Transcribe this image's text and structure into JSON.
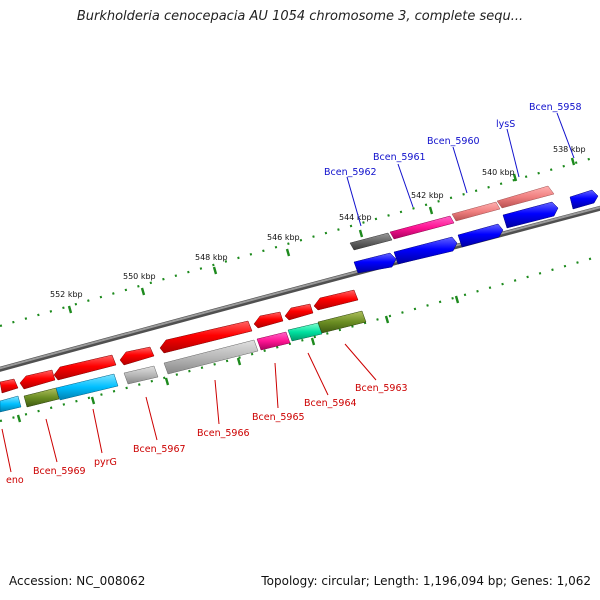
{
  "title": "Burkholderia cenocepacia AU 1054 chromosome 3, complete sequ...",
  "footer": {
    "accession": "Accession: NC_008062",
    "summary": "Topology: circular; Length: 1,196,094 bp; Genes: 1,062"
  },
  "colors": {
    "backbone": "#808080",
    "tick": "#1d8a1d",
    "upper_label": "#1010cc",
    "lower_label": "#cc0000"
  },
  "ticks": [
    "538 kbp",
    "540 kbp",
    "542 kbp",
    "544 kbp",
    "546 kbp",
    "548 kbp",
    "550 kbp",
    "552 kbp"
  ],
  "upper_labels": [
    "Bcen_5958",
    "lysS",
    "Bcen_5960",
    "Bcen_5961",
    "Bcen_5962"
  ],
  "lower_labels": [
    "eno",
    "Bcen_5969",
    "pyrG",
    "Bcen_5967",
    "Bcen_5966",
    "Bcen_5965",
    "Bcen_5964",
    "Bcen_5963"
  ]
}
